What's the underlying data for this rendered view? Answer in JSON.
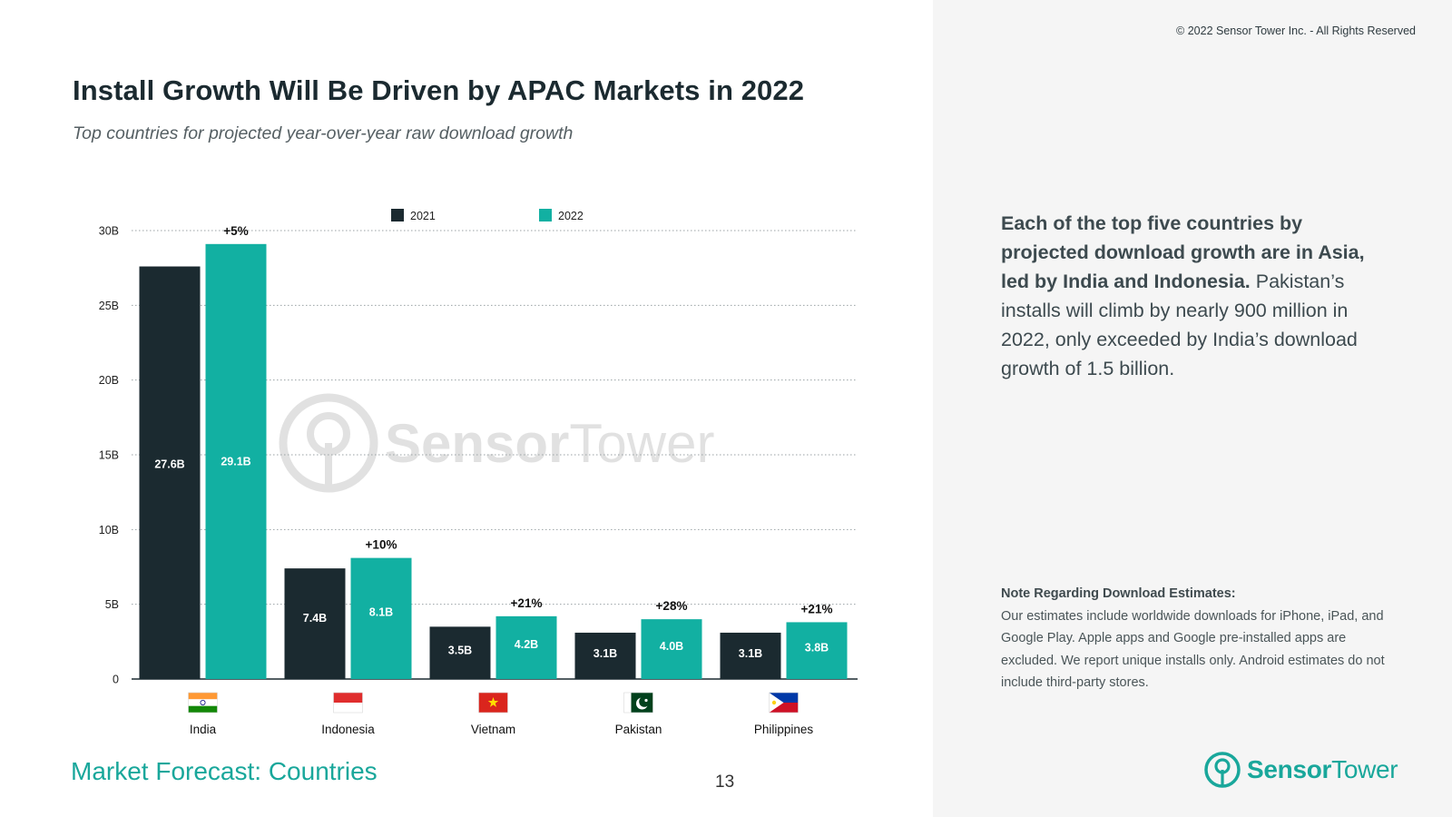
{
  "header": {
    "copyright": "© 2022 Sensor Tower Inc. - All Rights Reserved",
    "title": "Install Growth Will Be Driven by APAC Markets in 2022",
    "subtitle": "Top countries for projected year-over-year raw download growth"
  },
  "summary": {
    "bold_text": "Each of the top five countries by projected download growth are in Asia, led by India and Indonesia.",
    "regular_text": " Pakistan’s installs will climb by nearly 900 million in 2022, only exceeded by India’s download growth of 1.5 billion."
  },
  "note": {
    "title": "Note Regarding Download Estimates:",
    "body": "Our estimates include worldwide downloads for iPhone, iPad, and Google Play. Apple apps and Google pre-installed apps are excluded. We report unique installs only. Android estimates do not include third-party stores."
  },
  "footer": {
    "section": "Market Forecast: Countries",
    "page_number": "13",
    "logo_sensor": "Sensor",
    "logo_tower": "Tower"
  },
  "watermark": {
    "sensor": "Sensor",
    "tower": "Tower"
  },
  "colors": {
    "series_2021": "#1b2a30",
    "series_2022": "#12b0a2",
    "brand": "#19a79b",
    "grid": "#9aa2a5"
  },
  "chart_data": {
    "type": "bar",
    "title": "Install Growth Will Be Driven by APAC Markets in 2022",
    "categories": [
      "India",
      "Indonesia",
      "Vietnam",
      "Pakistan",
      "Philippines"
    ],
    "flags": [
      "india-flag",
      "indonesia-flag",
      "vietnam-flag",
      "pakistan-flag",
      "philippines-flag"
    ],
    "series": [
      {
        "name": "2021",
        "values": [
          27.6,
          7.4,
          3.5,
          3.1,
          3.1
        ],
        "labels": [
          "27.6B",
          "7.4B",
          "3.5B",
          "3.1B",
          "3.1B"
        ]
      },
      {
        "name": "2022",
        "values": [
          29.1,
          8.1,
          4.2,
          4.0,
          3.8
        ],
        "labels": [
          "29.1B",
          "8.1B",
          "4.2B",
          "4.0B",
          "3.8B"
        ]
      }
    ],
    "growth_labels": [
      "+5%",
      "+10%",
      "+21%",
      "+28%",
      "+21%"
    ],
    "yticks": [
      0,
      5,
      10,
      15,
      20,
      25,
      30
    ],
    "ytick_labels": [
      "0",
      "5B",
      "10B",
      "15B",
      "20B",
      "25B",
      "30B"
    ],
    "ylim": [
      0,
      30
    ],
    "xlabel": "",
    "ylabel": "",
    "legend_position": "top-center",
    "grid": true
  }
}
